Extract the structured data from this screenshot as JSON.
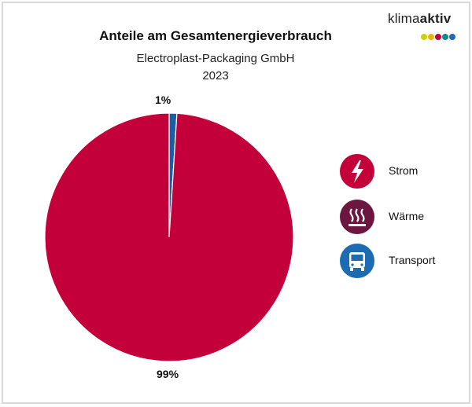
{
  "brand": {
    "part1": "klima",
    "part2": "aktiv",
    "dot_colors": [
      "#c8d400",
      "#f0b400",
      "#c4003a",
      "#0a8f86",
      "#1c6bb3"
    ]
  },
  "chart_data": {
    "type": "pie",
    "title": "Anteile am Gesamtenergieverbrauch",
    "subtitle": "Electroplast-Packaging GmbH",
    "year": "2023",
    "slices": [
      {
        "name": "Strom",
        "value": 99,
        "label": "99%",
        "color": "#c4003a"
      },
      {
        "name": "Wärme",
        "value": 0,
        "label": "",
        "color": "#6b1740"
      },
      {
        "name": "Transport",
        "value": 1,
        "label": "1%",
        "color": "#1c5fa0"
      }
    ],
    "legend_placement": "right"
  },
  "legend": [
    {
      "label": "Strom",
      "icon": "lightning-bolt-icon",
      "color": "#c4003a"
    },
    {
      "label": "Wärme",
      "icon": "heat-waves-icon",
      "color": "#6b1740"
    },
    {
      "label": "Transport",
      "icon": "bus-icon",
      "color": "#1c6bb3"
    }
  ]
}
